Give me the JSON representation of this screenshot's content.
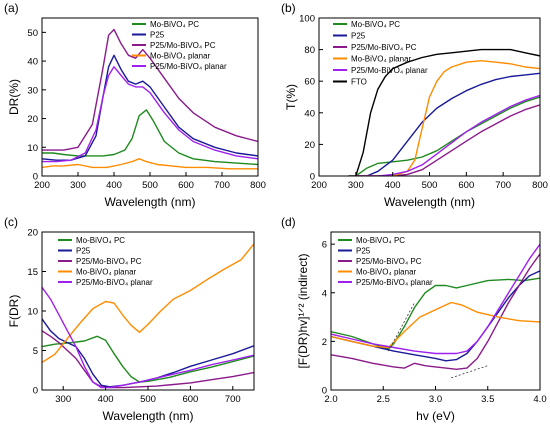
{
  "chart_data": [
    {
      "type": "line",
      "panel_label": "(a)",
      "xlabel": "Wavelength (nm)",
      "ylabel": "DR(%)",
      "xlim": [
        200,
        800
      ],
      "ylim": [
        0,
        55
      ],
      "x_ticks": [
        200,
        300,
        400,
        500,
        600,
        700,
        800
      ],
      "y_ticks": [
        0,
        10,
        20,
        30,
        40,
        50
      ],
      "legend_position": "top-right",
      "series": [
        {
          "name": "Mo-BiVO₄ PC",
          "color": "#1f8a1f",
          "x": [
            200,
            230,
            260,
            300,
            340,
            370,
            400,
            430,
            450,
            470,
            490,
            510,
            540,
            580,
            620,
            680,
            740,
            800
          ],
          "y": [
            8,
            8,
            7.5,
            7,
            7,
            7,
            7.5,
            9,
            13,
            21,
            23,
            19,
            12,
            8,
            6,
            5,
            4.5,
            4
          ]
        },
        {
          "name": "P25",
          "color": "#1a1a99",
          "x": [
            200,
            240,
            280,
            320,
            350,
            370,
            385,
            400,
            420,
            440,
            460,
            480,
            500,
            540,
            580,
            620,
            680,
            740,
            800
          ],
          "y": [
            6,
            5.5,
            5.5,
            7,
            14,
            28,
            38,
            42,
            37,
            33,
            32,
            33,
            31,
            24,
            17,
            13,
            10,
            8,
            7
          ]
        },
        {
          "name": "P25/Mo-BiVO₄ PC",
          "color": "#8b1a8b",
          "x": [
            200,
            230,
            260,
            300,
            340,
            370,
            385,
            400,
            420,
            440,
            460,
            480,
            500,
            540,
            580,
            620,
            680,
            740,
            800
          ],
          "y": [
            9,
            9,
            9,
            10,
            18,
            38,
            49,
            51,
            46,
            42,
            41,
            44,
            41,
            34,
            27,
            22,
            17,
            14,
            12
          ]
        },
        {
          "name": "Mo-BiVO₄ planar",
          "color": "#ff8c00",
          "x": [
            200,
            230,
            260,
            300,
            340,
            380,
            420,
            450,
            470,
            490,
            520,
            560,
            600,
            660,
            720,
            800
          ],
          "y": [
            3,
            3.5,
            3.5,
            4,
            3,
            3,
            4,
            5,
            6,
            5,
            4,
            3.5,
            3,
            3,
            2.5,
            2.5
          ]
        },
        {
          "name": "P25/Mo-BiVO₄ planar",
          "color": "#a020f0",
          "x": [
            200,
            240,
            280,
            320,
            350,
            370,
            385,
            400,
            420,
            440,
            460,
            480,
            500,
            540,
            580,
            620,
            680,
            740,
            800
          ],
          "y": [
            5,
            5,
            5.5,
            8,
            16,
            28,
            35,
            38,
            35,
            32,
            31,
            31,
            29,
            22,
            16,
            12,
            9,
            7,
            6
          ]
        }
      ]
    },
    {
      "type": "line",
      "panel_label": "(b)",
      "xlabel": "Wavelength (nm)",
      "ylabel": "T(%)",
      "xlim": [
        200,
        800
      ],
      "ylim": [
        0,
        100
      ],
      "x_ticks": [
        200,
        300,
        400,
        500,
        600,
        700,
        800
      ],
      "y_ticks": [
        0,
        20,
        40,
        60,
        80,
        100
      ],
      "legend_position": "top-left",
      "series": [
        {
          "name": "Mo-BiVO₄ PC",
          "color": "#1f8a1f",
          "x": [
            300,
            330,
            360,
            400,
            440,
            480,
            520,
            560,
            600,
            640,
            680,
            720,
            760,
            800
          ],
          "y": [
            0,
            5,
            8,
            9,
            10,
            12,
            16,
            22,
            28,
            33,
            38,
            43,
            47,
            50
          ]
        },
        {
          "name": "P25",
          "color": "#1a1a99",
          "x": [
            300,
            330,
            360,
            400,
            440,
            480,
            520,
            560,
            600,
            640,
            680,
            720,
            760,
            800
          ],
          "y": [
            0,
            0,
            3,
            10,
            22,
            34,
            43,
            49,
            54,
            58,
            61,
            63,
            64,
            65
          ]
        },
        {
          "name": "P25/Mo-BiVO₄ PC",
          "color": "#8b1a8b",
          "x": [
            300,
            360,
            400,
            440,
            480,
            520,
            560,
            600,
            640,
            680,
            720,
            760,
            800
          ],
          "y": [
            0,
            0,
            0,
            1,
            4,
            10,
            16,
            22,
            28,
            33,
            38,
            42,
            45
          ]
        },
        {
          "name": "Mo-BiVO₄ planar",
          "color": "#ff8c00",
          "x": [
            300,
            400,
            440,
            460,
            480,
            500,
            520,
            540,
            560,
            600,
            640,
            680,
            720,
            760,
            800
          ],
          "y": [
            0,
            0,
            3,
            10,
            30,
            50,
            60,
            66,
            69,
            72,
            73,
            72,
            71,
            69,
            68
          ]
        },
        {
          "name": "P25/Mo-BiVO₄ planar",
          "color": "#a020f0",
          "x": [
            300,
            360,
            400,
            440,
            480,
            520,
            560,
            600,
            640,
            680,
            720,
            760,
            800
          ],
          "y": [
            0,
            0,
            1,
            3,
            7,
            14,
            21,
            28,
            34,
            39,
            44,
            48,
            51
          ]
        },
        {
          "name": "FTO",
          "color": "#000000",
          "x": [
            280,
            300,
            320,
            340,
            360,
            380,
            400,
            440,
            480,
            520,
            560,
            600,
            640,
            680,
            720,
            760,
            800
          ],
          "y": [
            0,
            0,
            15,
            40,
            55,
            63,
            68,
            72,
            75,
            77,
            78,
            79,
            80,
            80,
            80,
            78,
            76
          ]
        }
      ]
    },
    {
      "type": "line",
      "panel_label": "(c)",
      "xlabel": "Wavelength (nm)",
      "ylabel": "F(DR)",
      "xlim": [
        250,
        750
      ],
      "ylim": [
        0,
        20
      ],
      "x_ticks": [
        300,
        400,
        500,
        600,
        700
      ],
      "y_ticks": [
        0,
        5,
        10,
        15,
        20
      ],
      "legend_position": "top-left",
      "series": [
        {
          "name": "Mo-BiVO₄ PC",
          "color": "#1f8a1f",
          "x": [
            250,
            280,
            320,
            350,
            380,
            400,
            420,
            440,
            460,
            480,
            500,
            550,
            600,
            650,
            700,
            750
          ],
          "y": [
            5.5,
            5.8,
            6,
            6.2,
            6.8,
            6.3,
            4.6,
            3,
            1.7,
            1,
            1.1,
            1.6,
            2.3,
            2.9,
            3.6,
            4.3
          ]
        },
        {
          "name": "P25",
          "color": "#1a1a99",
          "x": [
            250,
            270,
            290,
            310,
            330,
            350,
            370,
            390,
            410,
            440,
            480,
            520,
            560,
            600,
            650,
            700,
            750
          ],
          "y": [
            9,
            7.5,
            6.5,
            6,
            5.5,
            4,
            2,
            0.6,
            0.4,
            0.6,
            1,
            1.5,
            2.2,
            3,
            3.8,
            4.6,
            5.6
          ]
        },
        {
          "name": "P25/Mo-BiVO₄ PC",
          "color": "#8b1a8b",
          "x": [
            250,
            270,
            290,
            310,
            330,
            350,
            370,
            390,
            410,
            440,
            480,
            520,
            560,
            600,
            650,
            700,
            750
          ],
          "y": [
            7.5,
            6.8,
            6,
            5,
            4,
            2.5,
            1,
            0.4,
            0.3,
            0.3,
            0.4,
            0.5,
            0.7,
            0.9,
            1.3,
            1.7,
            2.2
          ]
        },
        {
          "name": "Mo-BiVO₄ planar",
          "color": "#ff8c00",
          "x": [
            250,
            280,
            310,
            340,
            370,
            400,
            420,
            440,
            460,
            480,
            500,
            530,
            560,
            600,
            640,
            680,
            720,
            750
          ],
          "y": [
            3.5,
            4.5,
            6.5,
            8.5,
            10.3,
            11.2,
            11,
            9.5,
            8.2,
            7.3,
            8.3,
            10,
            11.5,
            12.6,
            14,
            15.3,
            16.5,
            18.5
          ]
        },
        {
          "name": "P25/Mo-BiVO₄ planar",
          "color": "#a020f0",
          "x": [
            250,
            270,
            290,
            310,
            330,
            350,
            370,
            390,
            410,
            440,
            480,
            520,
            560,
            600,
            650,
            700,
            750
          ],
          "y": [
            13,
            11.5,
            9.5,
            7.5,
            5.5,
            3,
            1,
            0.3,
            0.3,
            0.6,
            1,
            1.5,
            2,
            2.5,
            3.2,
            3.8,
            4.4
          ]
        }
      ]
    },
    {
      "type": "line",
      "panel_label": "(d)",
      "xlabel": "hv (eV)",
      "ylabel": "[F(DR)hv]¹ᐟ² (indirect)",
      "xlim": [
        2.0,
        4.0
      ],
      "ylim": [
        0,
        6.5
      ],
      "x_ticks": [
        2.0,
        2.5,
        3.0,
        3.5,
        4.0
      ],
      "y_ticks": [
        0,
        2,
        4,
        6
      ],
      "legend_position": "top-left",
      "series": [
        {
          "name": "Mo-BiVO₄ PC",
          "color": "#1f8a1f",
          "x": [
            2.0,
            2.2,
            2.4,
            2.55,
            2.6,
            2.7,
            2.8,
            2.9,
            3.0,
            3.1,
            3.2,
            3.3,
            3.5,
            3.7,
            3.85,
            4.0
          ],
          "y": [
            2.4,
            2.2,
            1.9,
            1.7,
            1.9,
            2.6,
            3.4,
            4.0,
            4.3,
            4.3,
            4.2,
            4.3,
            4.5,
            4.55,
            4.5,
            4.6
          ]
        },
        {
          "name": "P25",
          "color": "#1a1a99",
          "x": [
            2.0,
            2.2,
            2.4,
            2.6,
            2.8,
            3.0,
            3.1,
            3.2,
            3.3,
            3.4,
            3.5,
            3.6,
            3.7,
            3.8,
            3.9,
            4.0
          ],
          "y": [
            2.2,
            2.0,
            1.8,
            1.6,
            1.45,
            1.3,
            1.2,
            1.25,
            1.5,
            2.0,
            2.6,
            3.2,
            3.8,
            4.3,
            4.7,
            4.9
          ]
        },
        {
          "name": "P25/Mo-BiVO₄ PC",
          "color": "#8b1a8b",
          "x": [
            2.0,
            2.2,
            2.4,
            2.6,
            2.7,
            2.8,
            2.9,
            3.0,
            3.1,
            3.2,
            3.3,
            3.4,
            3.5,
            3.6,
            3.7,
            3.8,
            3.9,
            4.0
          ],
          "y": [
            1.45,
            1.3,
            1.1,
            0.95,
            0.9,
            1.1,
            1.0,
            0.95,
            0.9,
            0.85,
            0.9,
            1.3,
            2.0,
            2.8,
            3.6,
            4.3,
            5.0,
            5.6
          ]
        },
        {
          "name": "Mo-BiVO₄ planar",
          "color": "#ff8c00",
          "x": [
            2.0,
            2.2,
            2.4,
            2.55,
            2.7,
            2.85,
            3.0,
            3.15,
            3.25,
            3.4,
            3.6,
            3.8,
            4.0
          ],
          "y": [
            2.2,
            2.0,
            1.8,
            1.75,
            2.4,
            3.0,
            3.3,
            3.6,
            3.5,
            3.2,
            3.0,
            2.85,
            2.8
          ]
        },
        {
          "name": "P25/Mo-BiVO₄ planar",
          "color": "#a020f0",
          "x": [
            2.0,
            2.2,
            2.4,
            2.6,
            2.8,
            3.0,
            3.2,
            3.3,
            3.4,
            3.5,
            3.6,
            3.7,
            3.8,
            3.9,
            4.0
          ],
          "y": [
            2.3,
            2.1,
            1.9,
            1.75,
            1.6,
            1.5,
            1.5,
            1.6,
            2.0,
            2.6,
            3.3,
            4.0,
            4.7,
            5.4,
            6.0
          ]
        }
      ]
    }
  ]
}
